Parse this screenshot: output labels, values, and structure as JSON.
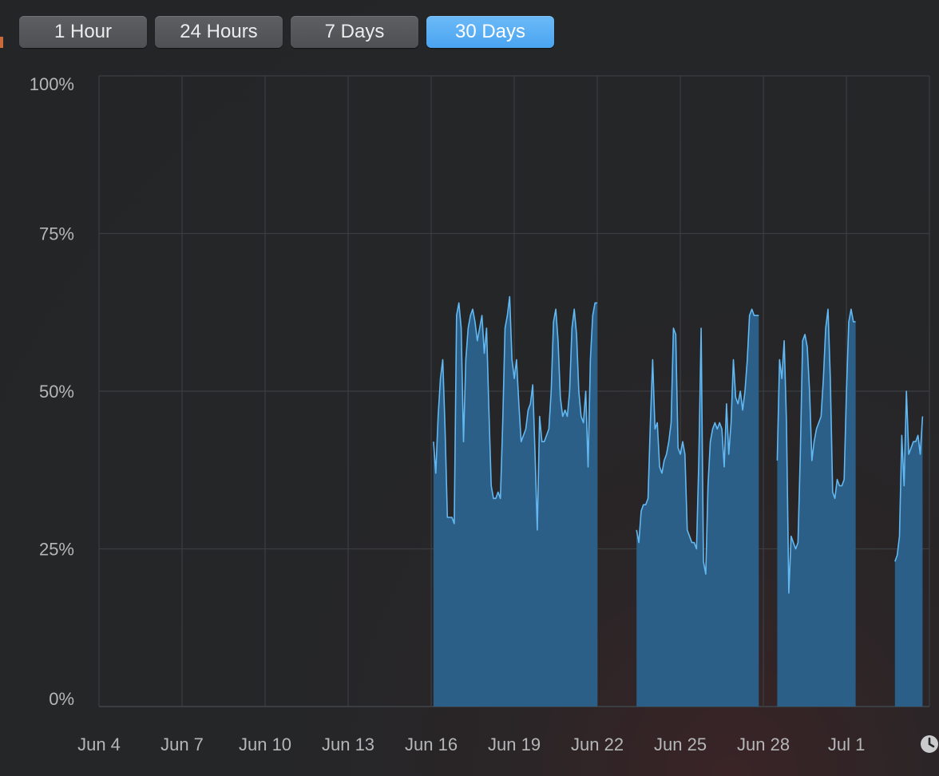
{
  "tabs": [
    {
      "label": "1 Hour",
      "active": false
    },
    {
      "label": "24 Hours",
      "active": false
    },
    {
      "label": "7 Days",
      "active": false
    },
    {
      "label": "30 Days",
      "active": true
    }
  ],
  "colors": {
    "accent": "#4aa4f1",
    "area_fill": "#2c5f87",
    "line": "#62b8f2",
    "grid": "#3b3e41",
    "label": "#b4b6b8"
  },
  "chart_data": {
    "type": "area",
    "title": "",
    "xlabel": "",
    "ylabel": "",
    "ylim": [
      0,
      100
    ],
    "xlim": [
      "Jun 4",
      "Jul 4"
    ],
    "y_ticks": [
      "0%",
      "25%",
      "50%",
      "75%",
      "100%"
    ],
    "x_ticks": [
      "Jun 4",
      "Jun 7",
      "Jun 10",
      "Jun 13",
      "Jun 16",
      "Jun 19",
      "Jun 22",
      "Jun 25",
      "Jun 28",
      "Jul 1"
    ],
    "grid": true,
    "segments": [
      {
        "start": "Jun 16 02:00",
        "x": [
          "Jun 16 02:00",
          "Jun 16 04:00",
          "Jun 16 06:00",
          "Jun 16 08:00",
          "Jun 16 10:00",
          "Jun 16 12:00",
          "Jun 16 14:00",
          "Jun 16 16:00",
          "Jun 16 18:00",
          "Jun 16 20:00",
          "Jun 16 22:00",
          "Jun 17 00:00",
          "Jun 17 02:00",
          "Jun 17 04:00",
          "Jun 17 06:00",
          "Jun 17 08:00",
          "Jun 17 10:00",
          "Jun 17 12:00",
          "Jun 17 14:00",
          "Jun 17 16:00",
          "Jun 17 18:00",
          "Jun 17 20:00",
          "Jun 17 22:00",
          "Jun 18 00:00",
          "Jun 18 02:00",
          "Jun 18 04:00",
          "Jun 18 06:00",
          "Jun 18 08:00",
          "Jun 18 10:00",
          "Jun 18 12:00",
          "Jun 18 14:00",
          "Jun 18 16:00",
          "Jun 18 18:00",
          "Jun 18 20:00",
          "Jun 18 22:00",
          "Jun 19 00:00",
          "Jun 19 02:00",
          "Jun 19 04:00",
          "Jun 19 06:00",
          "Jun 19 08:00",
          "Jun 19 10:00",
          "Jun 19 12:00",
          "Jun 19 14:00",
          "Jun 19 16:00",
          "Jun 19 18:00",
          "Jun 19 20:00",
          "Jun 19 22:00",
          "Jun 20 00:00",
          "Jun 20 02:00",
          "Jun 20 04:00",
          "Jun 20 06:00",
          "Jun 20 08:00",
          "Jun 20 10:00",
          "Jun 20 12:00",
          "Jun 20 14:00",
          "Jun 20 16:00",
          "Jun 20 18:00",
          "Jun 20 20:00",
          "Jun 20 22:00",
          "Jun 21 00:00",
          "Jun 21 02:00",
          "Jun 21 04:00",
          "Jun 21 06:00",
          "Jun 21 08:00",
          "Jun 21 10:00",
          "Jun 21 12:00",
          "Jun 21 14:00",
          "Jun 21 16:00",
          "Jun 21 18:00",
          "Jun 21 20:00",
          "Jun 21 22:00",
          "Jun 22 00:00",
          "Jun 22 02:00",
          "Jun 22 04:00",
          "Jun 22 06:00",
          "Jun 22 08:00",
          "Jun 22 10:00",
          "Jun 22 12:00",
          "Jun 22 14:00",
          "Jun 22 16:00",
          "Jun 22 18:00",
          "Jun 22 20:00",
          "Jun 22 22:00",
          "Jun 23 00:00",
          "Jun 23 02:00",
          "Jun 23 04:00",
          "Jun 23 06:00",
          "Jun 23 08:00"
        ],
        "y": [
          42,
          37,
          46,
          52,
          55,
          44,
          30,
          30,
          30,
          29,
          62,
          64,
          60,
          42,
          55,
          60,
          62,
          63,
          61,
          58,
          60,
          62,
          56,
          60,
          47,
          35,
          33,
          33,
          34,
          33,
          45,
          60,
          62,
          65,
          55,
          52,
          55,
          48,
          42,
          43,
          44,
          47,
          48,
          51,
          40,
          28,
          46,
          42,
          42,
          43,
          44,
          50,
          61,
          63,
          58,
          49,
          46,
          47,
          46,
          50,
          60,
          63,
          59,
          50,
          46,
          45,
          50,
          38,
          55,
          62,
          64,
          64,
          0,
          0,
          0,
          0,
          0,
          0,
          0,
          0,
          0,
          0,
          0,
          0,
          0,
          0,
          0,
          0
        ],
        "points": 72
      },
      {
        "start": "Jun 23 10:00",
        "x": [
          "Jun 23 10:00",
          "Jun 23 12:00",
          "Jun 23 14:00",
          "Jun 23 16:00",
          "Jun 23 18:00",
          "Jun 23 20:00",
          "Jun 23 22:00",
          "Jun 24 00:00",
          "Jun 24 02:00",
          "Jun 24 04:00",
          "Jun 24 06:00",
          "Jun 24 08:00",
          "Jun 24 10:00",
          "Jun 24 12:00",
          "Jun 24 14:00",
          "Jun 24 16:00",
          "Jun 24 18:00",
          "Jun 24 20:00",
          "Jun 24 22:00",
          "Jun 25 00:00",
          "Jun 25 02:00",
          "Jun 25 04:00",
          "Jun 25 06:00",
          "Jun 25 08:00",
          "Jun 25 10:00",
          "Jun 25 12:00",
          "Jun 25 14:00",
          "Jun 25 16:00",
          "Jun 25 18:00",
          "Jun 25 20:00",
          "Jun 25 22:00",
          "Jun 26 00:00",
          "Jun 26 02:00",
          "Jun 26 04:00",
          "Jun 26 06:00",
          "Jun 26 08:00",
          "Jun 26 10:00",
          "Jun 26 12:00",
          "Jun 26 14:00",
          "Jun 26 16:00",
          "Jun 26 18:00",
          "Jun 26 20:00",
          "Jun 26 22:00",
          "Jun 27 00:00",
          "Jun 27 02:00",
          "Jun 27 04:00",
          "Jun 27 06:00",
          "Jun 27 08:00",
          "Jun 27 10:00",
          "Jun 27 12:00",
          "Jun 27 14:00",
          "Jun 27 16:00",
          "Jun 27 18:00",
          "Jun 27 20:00",
          "Jun 27 22:00",
          "Jun 28 00:00",
          "Jun 28 02:00"
        ],
        "y": [
          28,
          26,
          31,
          32,
          32,
          33,
          45,
          55,
          44,
          45,
          38,
          37,
          39,
          40,
          42,
          45,
          60,
          59,
          41,
          40,
          42,
          40,
          28,
          27,
          26,
          26,
          25,
          39,
          60,
          23,
          21,
          35,
          42,
          44,
          45,
          44,
          45,
          44,
          38,
          48,
          40,
          45,
          55,
          49,
          48,
          50,
          47,
          50,
          55,
          62,
          63,
          62,
          62,
          62,
          0,
          0,
          0
        ],
        "points": 54
      },
      {
        "start": "Jun 28 12:00",
        "x": [
          "Jun 28 12:00",
          "Jun 28 14:00",
          "Jun 28 16:00",
          "Jun 28 18:00",
          "Jun 28 20:00",
          "Jun 28 22:00",
          "Jun 29 00:00",
          "Jun 29 02:00",
          "Jun 29 04:00",
          "Jun 29 06:00",
          "Jun 29 08:00",
          "Jun 29 10:00",
          "Jun 29 12:00",
          "Jun 29 14:00",
          "Jun 29 16:00",
          "Jun 29 18:00",
          "Jun 29 20:00",
          "Jun 29 22:00",
          "Jun 30 00:00",
          "Jun 30 02:00",
          "Jun 30 04:00",
          "Jun 30 06:00",
          "Jun 30 08:00",
          "Jun 30 10:00",
          "Jun 30 12:00",
          "Jun 30 14:00",
          "Jun 30 16:00",
          "Jun 30 18:00",
          "Jun 30 20:00",
          "Jun 30 22:00",
          "Jul 1 00:00",
          "Jul 1 02:00",
          "Jul 1 04:00",
          "Jul 1 06:00",
          "Jul 1 08:00",
          "Jul 1 10:00",
          "Jul 1 12:00",
          "Jul 1 14:00",
          "Jul 1 16:00"
        ],
        "y": [
          39,
          55,
          52,
          58,
          45,
          18,
          27,
          26,
          25,
          26,
          40,
          58,
          59,
          57,
          50,
          39,
          42,
          44,
          45,
          46,
          52,
          60,
          63,
          52,
          34,
          33,
          36,
          35,
          35,
          36,
          50,
          61,
          63,
          61,
          61,
          0,
          0,
          0,
          0
        ],
        "points": 35
      },
      {
        "start": "Jul 2 18:00",
        "x": [
          "Jul 2 18:00",
          "Jul 2 20:00",
          "Jul 2 22:00",
          "Jul 3 00:00",
          "Jul 3 02:00",
          "Jul 3 04:00",
          "Jul 3 06:00",
          "Jul 3 08:00",
          "Jul 3 10:00",
          "Jul 3 12:00",
          "Jul 3 14:00",
          "Jul 3 16:00",
          "Jul 3 18:00",
          "Jul 3 20:00",
          "Jul 3 22:00"
        ],
        "y": [
          23,
          24,
          27,
          43,
          35,
          50,
          40,
          41,
          42,
          42,
          43,
          40,
          46,
          0,
          0
        ],
        "points": 13
      }
    ]
  }
}
